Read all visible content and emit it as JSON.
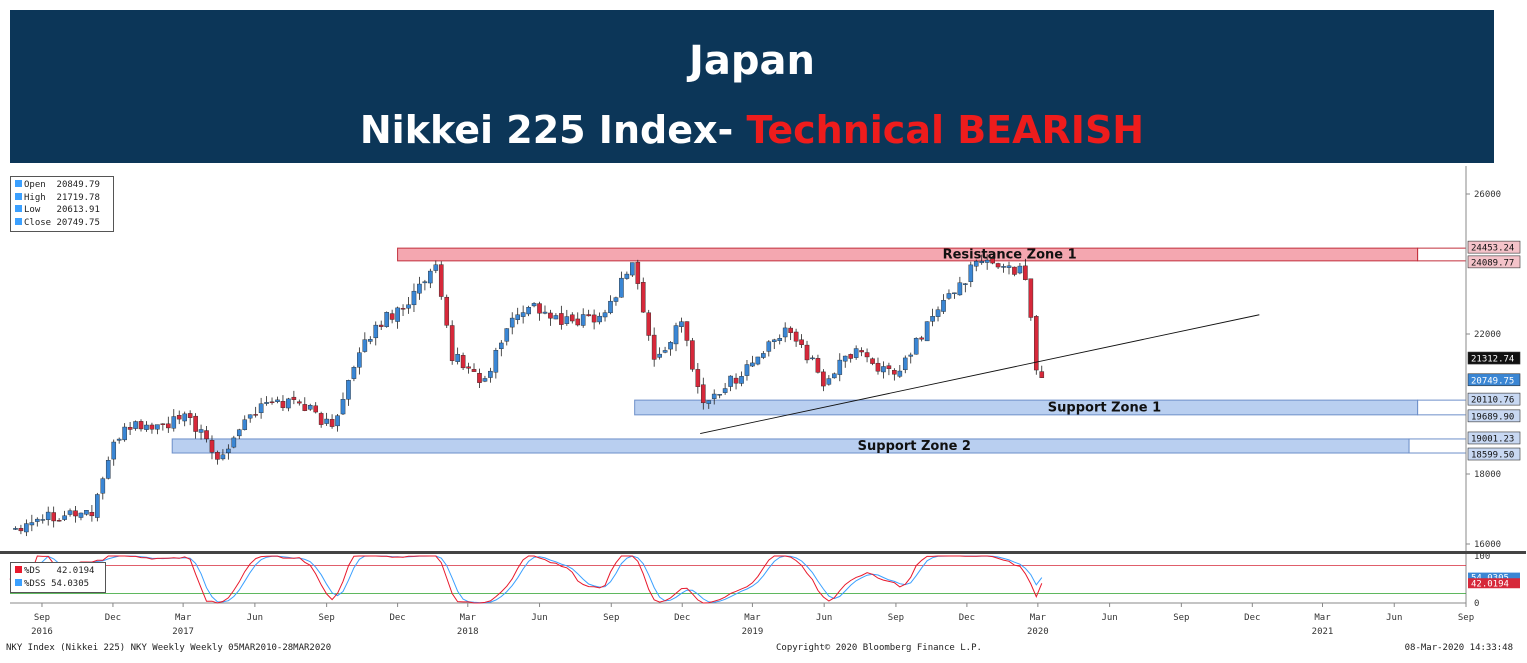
{
  "banner": {
    "title": "Japan",
    "subtitle_main": "Nikkei 225 Index- ",
    "subtitle_signal": "Technical BEARISH",
    "background": "#0c3658",
    "signal_color": "#ee1c1c"
  },
  "ohlc_legend": [
    {
      "label": "Open",
      "value": "20849.79"
    },
    {
      "label": "High",
      "value": "21719.78"
    },
    {
      "label": "Low",
      "value": "20613.91"
    },
    {
      "label": "Close",
      "value": "20749.75"
    }
  ],
  "stoch_legend": [
    {
      "label": "%DS",
      "value": "42.0194",
      "color": "#e8192c"
    },
    {
      "label": "%DSS",
      "value": "54.0305",
      "color": "#3ba0ff"
    }
  ],
  "footer": {
    "left": "NKY Index (Nikkei 225) NKY Weekly  Weekly 05MAR2010-28MAR2020",
    "center": "Copyright© 2020 Bloomberg Finance L.P.",
    "right": "08-Mar-2020 14:33:48"
  },
  "chart_data": {
    "type": "candlestick",
    "frequency": "weekly",
    "x_range": [
      "2016-07-22",
      "2021-09-01"
    ],
    "y_range": [
      15800,
      26800
    ],
    "y_ticks": [
      16000,
      18000,
      22000,
      26000
    ],
    "x_month_labels": [
      {
        "label": "Sep",
        "date": "2016-09-01"
      },
      {
        "label": "Dec",
        "date": "2016-12-01"
      },
      {
        "label": "Mar",
        "date": "2017-03-01"
      },
      {
        "label": "Jun",
        "date": "2017-06-01"
      },
      {
        "label": "Sep",
        "date": "2017-09-01"
      },
      {
        "label": "Dec",
        "date": "2017-12-01"
      },
      {
        "label": "Mar",
        "date": "2018-03-01"
      },
      {
        "label": "Jun",
        "date": "2018-06-01"
      },
      {
        "label": "Sep",
        "date": "2018-09-01"
      },
      {
        "label": "Dec",
        "date": "2018-12-01"
      },
      {
        "label": "Mar",
        "date": "2019-03-01"
      },
      {
        "label": "Jun",
        "date": "2019-06-01"
      },
      {
        "label": "Sep",
        "date": "2019-09-01"
      },
      {
        "label": "Dec",
        "date": "2019-12-01"
      },
      {
        "label": "Mar",
        "date": "2020-03-01"
      },
      {
        "label": "Jun",
        "date": "2020-06-01"
      },
      {
        "label": "Sep",
        "date": "2020-09-01"
      },
      {
        "label": "Dec",
        "date": "2020-12-01"
      },
      {
        "label": "Mar",
        "date": "2021-03-01"
      },
      {
        "label": "Jun",
        "date": "2021-06-01"
      },
      {
        "label": "Sep",
        "date": "2021-09-01"
      }
    ],
    "x_year_labels": [
      {
        "label": "2016",
        "date": "2016-09-01"
      },
      {
        "label": "2017",
        "date": "2017-03-01"
      },
      {
        "label": "2018",
        "date": "2018-03-01"
      },
      {
        "label": "2019",
        "date": "2019-03-01"
      },
      {
        "label": "2020",
        "date": "2020-03-01"
      },
      {
        "label": "2021",
        "date": "2021-03-01"
      }
    ],
    "zones": [
      {
        "name": "Resistance Zone 1",
        "from": "2017-12-01",
        "to": "2021-07-01",
        "low": 24089.77,
        "high": 24453.24,
        "low_label": "24089.77",
        "high_label": "24453.24",
        "color": "#f4a7b0"
      },
      {
        "name": "Support Zone 1",
        "from": "2018-10-01",
        "to": "2021-07-01",
        "low": 19689.9,
        "high": 20110.76,
        "low_label": "19689.90",
        "high_label": "20110.76",
        "color": "#b9cff0"
      },
      {
        "name": "Support Zone 2",
        "from": "2017-02-15",
        "to": "2021-06-20",
        "low": 18599.5,
        "high": 19001.23,
        "low_label": "18599.50",
        "high_label": "19001.23",
        "color": "#b9cff0"
      }
    ],
    "trendline": {
      "from": {
        "date": "2018-12-24",
        "value": 19155
      },
      "to": {
        "date": "2020-12-10",
        "value": 22550
      }
    },
    "price_labels": [
      {
        "value": 21312.74,
        "label": "21312.74"
      },
      {
        "value": 20749.75,
        "label": "20749.75"
      }
    ],
    "anchors": [
      {
        "date": "2016-07-22",
        "value": 16400
      },
      {
        "date": "2016-08-26",
        "value": 16800
      },
      {
        "date": "2016-10-14",
        "value": 16900
      },
      {
        "date": "2016-11-04",
        "value": 16900
      },
      {
        "date": "2016-11-25",
        "value": 18400
      },
      {
        "date": "2016-12-16",
        "value": 19400
      },
      {
        "date": "2017-01-27",
        "value": 19350
      },
      {
        "date": "2017-03-10",
        "value": 19600
      },
      {
        "date": "2017-04-14",
        "value": 18400
      },
      {
        "date": "2017-05-19",
        "value": 19600
      },
      {
        "date": "2017-06-16",
        "value": 20000
      },
      {
        "date": "2017-07-28",
        "value": 20100
      },
      {
        "date": "2017-09-08",
        "value": 19300
      },
      {
        "date": "2017-09-22",
        "value": 20300
      },
      {
        "date": "2017-10-27",
        "value": 22000
      },
      {
        "date": "2017-11-17",
        "value": 22500
      },
      {
        "date": "2017-12-08",
        "value": 22800
      },
      {
        "date": "2018-01-19",
        "value": 23800
      },
      {
        "date": "2018-02-09",
        "value": 21400
      },
      {
        "date": "2018-03-23",
        "value": 20600
      },
      {
        "date": "2018-04-20",
        "value": 22200
      },
      {
        "date": "2018-05-18",
        "value": 22900
      },
      {
        "date": "2018-06-29",
        "value": 22300
      },
      {
        "date": "2018-08-24",
        "value": 22600
      },
      {
        "date": "2018-09-28",
        "value": 24100
      },
      {
        "date": "2018-10-26",
        "value": 21200
      },
      {
        "date": "2018-11-30",
        "value": 22300
      },
      {
        "date": "2018-12-28",
        "value": 20000
      },
      {
        "date": "2019-02-15",
        "value": 20900
      },
      {
        "date": "2019-04-19",
        "value": 22200
      },
      {
        "date": "2019-05-31",
        "value": 20600
      },
      {
        "date": "2019-07-12",
        "value": 21600
      },
      {
        "date": "2019-08-30",
        "value": 20700
      },
      {
        "date": "2019-10-18",
        "value": 22500
      },
      {
        "date": "2019-12-13",
        "value": 24000
      },
      {
        "date": "2020-01-17",
        "value": 24000
      },
      {
        "date": "2020-02-14",
        "value": 23700
      },
      {
        "date": "2020-02-28",
        "value": 21142
      },
      {
        "date": "2020-03-06",
        "value": 20749.75
      }
    ],
    "stochastic": {
      "y_range": [
        0,
        100
      ],
      "y_ticks": [
        0,
        100
      ],
      "overbought": 80,
      "oversold": 20,
      "last_ds": "42.0194",
      "last_dss": "54.0305",
      "ds_color": "#e8192c",
      "dss_color": "#3ba0ff"
    }
  }
}
